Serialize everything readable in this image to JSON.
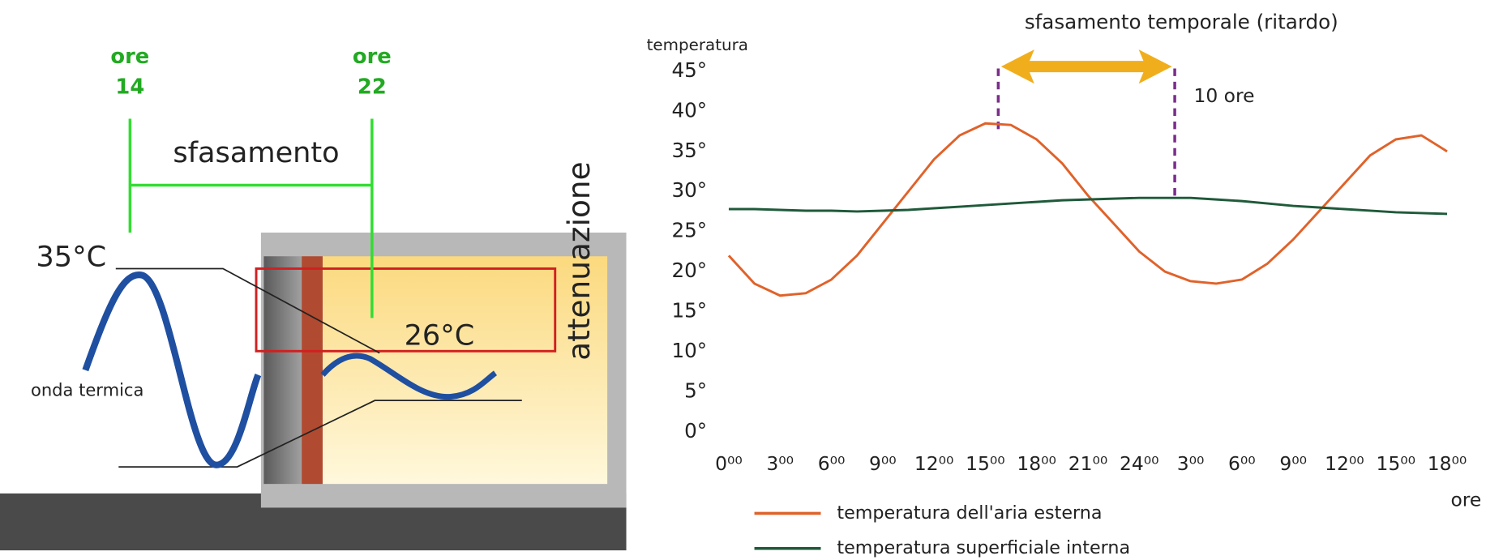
{
  "diagram": {
    "labels": {
      "ore_left": "ore",
      "hour_left": "14",
      "ore_right": "ore",
      "hour_right": "22",
      "sfasamento": "sfasamento",
      "attenuazione": "attenuazione",
      "temp_out": "35°C",
      "temp_in": "26°C",
      "wave": "onda termica"
    }
  },
  "chart_data": {
    "type": "line",
    "y_label": "temperatura",
    "x_label": "ore",
    "annotation_title": "sfasamento temporale (ritardo)",
    "annotation_delay": "10 ore",
    "x": [
      0,
      1.5,
      3,
      4.5,
      6,
      7.5,
      9,
      10.5,
      12,
      13.5,
      15,
      16.5,
      18,
      19.5,
      21,
      22.5,
      24,
      25.5,
      27,
      28.5,
      30,
      31.5,
      33,
      34.5,
      36,
      37.5,
      39,
      40.5,
      42
    ],
    "series": [
      {
        "name": "temperatura dell'aria esterna",
        "color": "#e0622a",
        "values": [
          22,
          18.5,
          17,
          17.3,
          19,
          22,
          26,
          30,
          34,
          37,
          38.5,
          38.3,
          36.5,
          33.5,
          29.5,
          26,
          22.5,
          20,
          18.8,
          18.5,
          19,
          21,
          24,
          27.5,
          31,
          34.5,
          36.5,
          37,
          35
        ]
      },
      {
        "name": "temperatura superficiale interna",
        "color": "#1f5a3a",
        "values": [
          27.8,
          27.8,
          27.7,
          27.6,
          27.6,
          27.5,
          27.6,
          27.7,
          27.9,
          28.1,
          28.3,
          28.5,
          28.7,
          28.9,
          29.0,
          29.1,
          29.2,
          29.2,
          29.2,
          29.0,
          28.8,
          28.5,
          28.2,
          28.0,
          27.8,
          27.6,
          27.4,
          27.3,
          27.2
        ]
      }
    ],
    "xlim": [
      0,
      42
    ],
    "ylim": [
      0,
      45
    ],
    "xticks": [
      {
        "value": 0,
        "label": "0⁰⁰"
      },
      {
        "value": 3,
        "label": "3⁰⁰"
      },
      {
        "value": 6,
        "label": "6⁰⁰"
      },
      {
        "value": 9,
        "label": "9⁰⁰"
      },
      {
        "value": 12,
        "label": "12⁰⁰"
      },
      {
        "value": 15,
        "label": "15⁰⁰"
      },
      {
        "value": 18,
        "label": "18⁰⁰"
      },
      {
        "value": 21,
        "label": "21⁰⁰"
      },
      {
        "value": 24,
        "label": "24⁰⁰"
      },
      {
        "value": 27,
        "label": "3⁰⁰"
      },
      {
        "value": 30,
        "label": "6⁰⁰"
      },
      {
        "value": 33,
        "label": "9⁰⁰"
      },
      {
        "value": 36,
        "label": "12⁰⁰"
      },
      {
        "value": 39,
        "label": "15⁰⁰"
      },
      {
        "value": 42,
        "label": "18⁰⁰"
      }
    ],
    "yticks": [
      {
        "value": 0,
        "label": "0°"
      },
      {
        "value": 5,
        "label": "5°"
      },
      {
        "value": 10,
        "label": "10°"
      },
      {
        "value": 15,
        "label": "15°"
      },
      {
        "value": 20,
        "label": "20°"
      },
      {
        "value": 25,
        "label": "25°"
      },
      {
        "value": 30,
        "label": "30°"
      },
      {
        "value": 35,
        "label": "35°"
      },
      {
        "value": 40,
        "label": "40°"
      },
      {
        "value": 45,
        "label": "45°"
      }
    ]
  }
}
